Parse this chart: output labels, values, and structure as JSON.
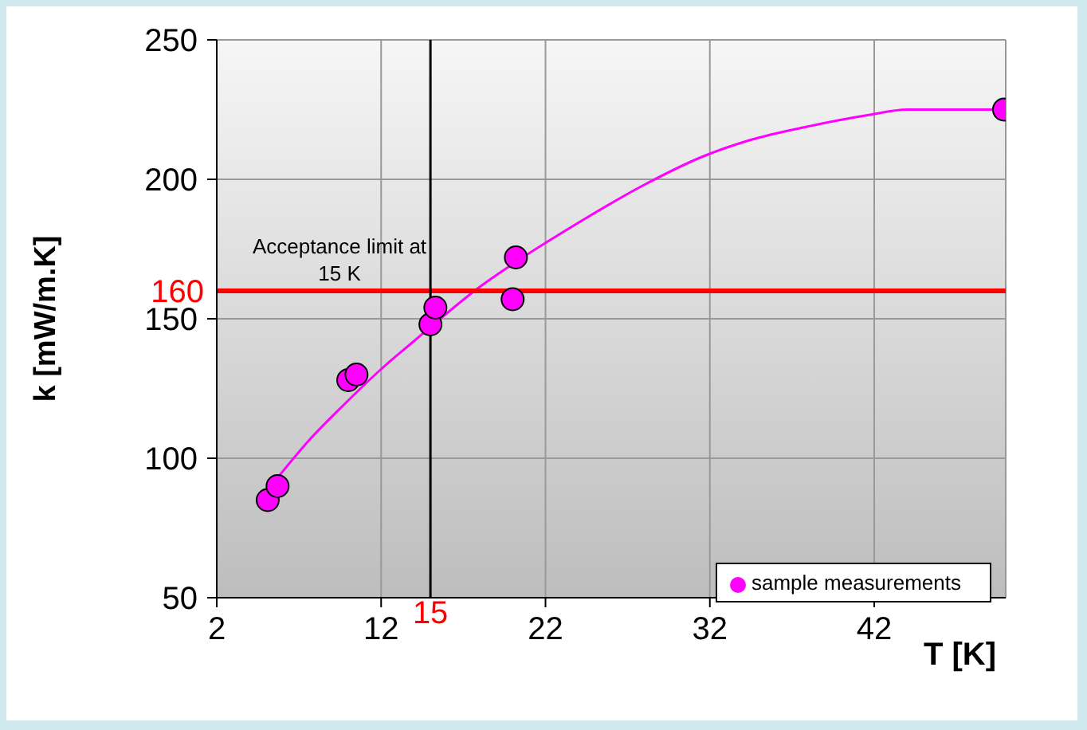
{
  "chart_data": {
    "type": "scatter",
    "xlabel": "T [K]",
    "ylabel": "k [mW/m.K]",
    "xlim": [
      2,
      50
    ],
    "xticks": [
      2,
      12,
      22,
      32,
      42
    ],
    "ylim": [
      50,
      250
    ],
    "yticks": [
      50,
      100,
      150,
      200,
      250
    ],
    "grid": true,
    "legend": "bottom right",
    "marker": "circle",
    "series": [
      {
        "name": "sample measurements",
        "color": "#ff00ff",
        "x": [
          5.1,
          5.7,
          10.0,
          10.5,
          15.0,
          15.3,
          20.0,
          20.2,
          49.9
        ],
        "values": [
          85,
          90,
          128,
          130,
          148,
          154,
          157,
          172,
          225
        ]
      },
      {
        "type": "line",
        "color": "#ff00ff",
        "marker": "none",
        "x": [
          5.7,
          7.7,
          9.7,
          12.2,
          14.0,
          15.8,
          17.9,
          20.1,
          23.6,
          28,
          31.5,
          34.4,
          38,
          41.6,
          44,
          50
        ],
        "values": [
          93,
          107,
          119,
          133,
          142,
          151,
          161,
          170,
          183,
          198,
          208,
          214,
          219,
          223,
          225,
          225
        ]
      }
    ],
    "ref_lines": [
      {
        "axis": "y",
        "value": 160,
        "label": "160",
        "color": "#ff0000"
      },
      {
        "axis": "x",
        "value": 15,
        "label": "15",
        "color": "#000000"
      }
    ],
    "annotations": [
      "Acceptance limit at 15 K"
    ]
  }
}
